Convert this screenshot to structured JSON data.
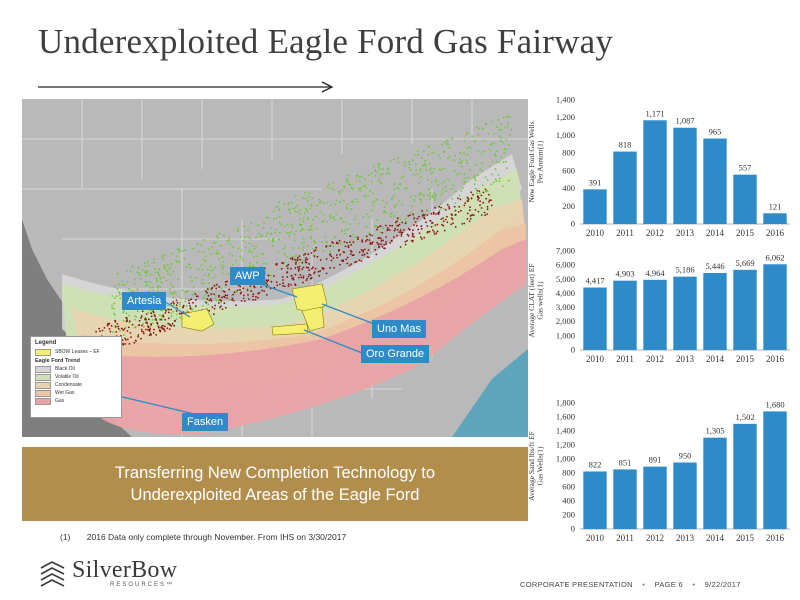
{
  "slide": {
    "title": "Underexploited Eagle Ford Gas Fairway",
    "banner_line1": "Transferring New Completion Technology to",
    "banner_line2": "Underexploited Areas of the Eagle Ford",
    "footnote_id": "(1)",
    "footnote_text": "2016 Data only complete through November. From IHS on 3/30/2017",
    "logo_name": "SilverBow",
    "logo_sub": "RESOURCES™",
    "footer_label": "CORPORATE PRESENTATION",
    "footer_page": "PAGE 6",
    "footer_date": "9/22/2017"
  },
  "map": {
    "callouts": {
      "awp": "AWP",
      "artesia": "Artesia",
      "uno_mas": "Uno Mas",
      "oro_grande": "Oro Grande",
      "fasken": "Fasken"
    },
    "legend": {
      "title": "Legend",
      "lease_label": "SBOW Leases – EF",
      "trend_title": "Eagle Ford Trend",
      "items": [
        {
          "label": "Black Oil",
          "color": "#d6d6d6"
        },
        {
          "label": "Volatile Oil",
          "color": "#cfe0b4"
        },
        {
          "label": "Condensate",
          "color": "#e8d3b0"
        },
        {
          "label": "Wet Gas",
          "color": "#ecc4a3"
        },
        {
          "label": "Gas",
          "color": "#e9a3a6"
        }
      ]
    }
  },
  "colors": {
    "bar": "#2e8bc8",
    "banner": "#b28e4d",
    "callout": "#2e8bc8"
  },
  "chart_data": [
    {
      "type": "bar",
      "ylabel": "New Eagle Ford Gas Wells Per Annum(1)",
      "categories": [
        "2010",
        "2011",
        "2012",
        "2013",
        "2014",
        "2015",
        "2016"
      ],
      "values": [
        391,
        818,
        1171,
        1087,
        965,
        557,
        121
      ],
      "value_labels": [
        "391",
        "818",
        "1,171",
        "1,087",
        "965",
        "557",
        "121"
      ],
      "ylim": [
        0,
        1400
      ],
      "yticks": [
        "0",
        "200",
        "400",
        "600",
        "800",
        "1,000",
        "1,200",
        "1,400"
      ],
      "ytick_values": [
        0,
        200,
        400,
        600,
        800,
        1000,
        1200,
        1400
      ]
    },
    {
      "type": "bar",
      "ylabel": "Average CLAT (feet) EF Gas wells(1)",
      "categories": [
        "2010",
        "2011",
        "2012",
        "2013",
        "2014",
        "2015",
        "2016"
      ],
      "values": [
        4417,
        4903,
        4964,
        5186,
        5446,
        5669,
        6062
      ],
      "value_labels": [
        "4,417",
        "4,903",
        "4,964",
        "5,186",
        "5,446",
        "5,669",
        "6,062"
      ],
      "ylim": [
        0,
        7000
      ],
      "yticks": [
        "0",
        "1,000",
        "2,000",
        "3,000",
        "4,000",
        "5,000",
        "6,000",
        "7,000"
      ],
      "ytick_values": [
        0,
        1000,
        2000,
        3000,
        4000,
        5000,
        6000,
        7000
      ]
    },
    {
      "type": "bar",
      "ylabel": "Average Sand lbs/ft EF Gas Wells(1)",
      "categories": [
        "2010",
        "2011",
        "2012",
        "2013",
        "2014",
        "2015",
        "2016"
      ],
      "values": [
        822,
        851,
        891,
        950,
        1305,
        1502,
        1680
      ],
      "value_labels": [
        "822",
        "851",
        "891",
        "950",
        "1,305",
        "1,502",
        "1,680"
      ],
      "ylim": [
        0,
        1800
      ],
      "yticks": [
        "0",
        "200",
        "400",
        "600",
        "800",
        "1,000",
        "1,200",
        "1,400",
        "1,600",
        "1,800"
      ],
      "ytick_values": [
        0,
        200,
        400,
        600,
        800,
        1000,
        1200,
        1400,
        1600,
        1800
      ]
    }
  ]
}
